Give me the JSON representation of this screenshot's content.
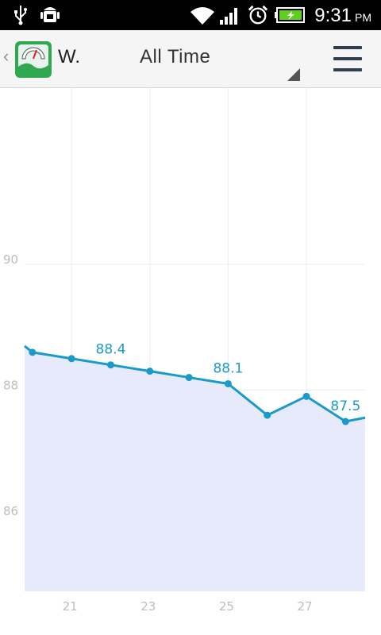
{
  "status_bar": {
    "time": "9:31",
    "ampm": "PM",
    "icons": [
      "usb-icon",
      "android-debug-icon",
      "wifi-icon",
      "signal-icon",
      "alarm-icon",
      "battery-charging-icon"
    ]
  },
  "action_bar": {
    "up_caret": "‹",
    "app_name": "W.",
    "app_icon": "weighing-scale-icon",
    "period_selector": "All Time",
    "menu_icon": "hamburger-menu-icon"
  },
  "colors": {
    "line": "#1b9ac9",
    "fill": "#e6eafb",
    "grid": "#ececec",
    "tick_text": "#bdbdbd"
  },
  "chart_data": {
    "type": "area",
    "x": [
      19.8,
      20,
      21,
      22,
      23,
      24,
      25,
      26,
      27,
      28,
      28.5
    ],
    "y": [
      88.7,
      88.6,
      88.5,
      88.4,
      88.3,
      88.2,
      88.1,
      87.6,
      87.9,
      87.5,
      87.56
    ],
    "markers": [
      false,
      true,
      true,
      true,
      true,
      true,
      true,
      true,
      true,
      true,
      false
    ],
    "annotations": [
      {
        "x": 22,
        "y": 88.4,
        "text": "88.4"
      },
      {
        "x": 25,
        "y": 88.1,
        "text": "88.1"
      },
      {
        "x": 28,
        "y": 87.5,
        "text": "87.5"
      }
    ],
    "xticks": [
      21,
      23,
      25,
      27
    ],
    "yticks": [
      86,
      88,
      90
    ],
    "xlim": [
      19.8,
      28.5
    ],
    "ylim": [
      84.8,
      92.8
    ],
    "grid": true
  }
}
